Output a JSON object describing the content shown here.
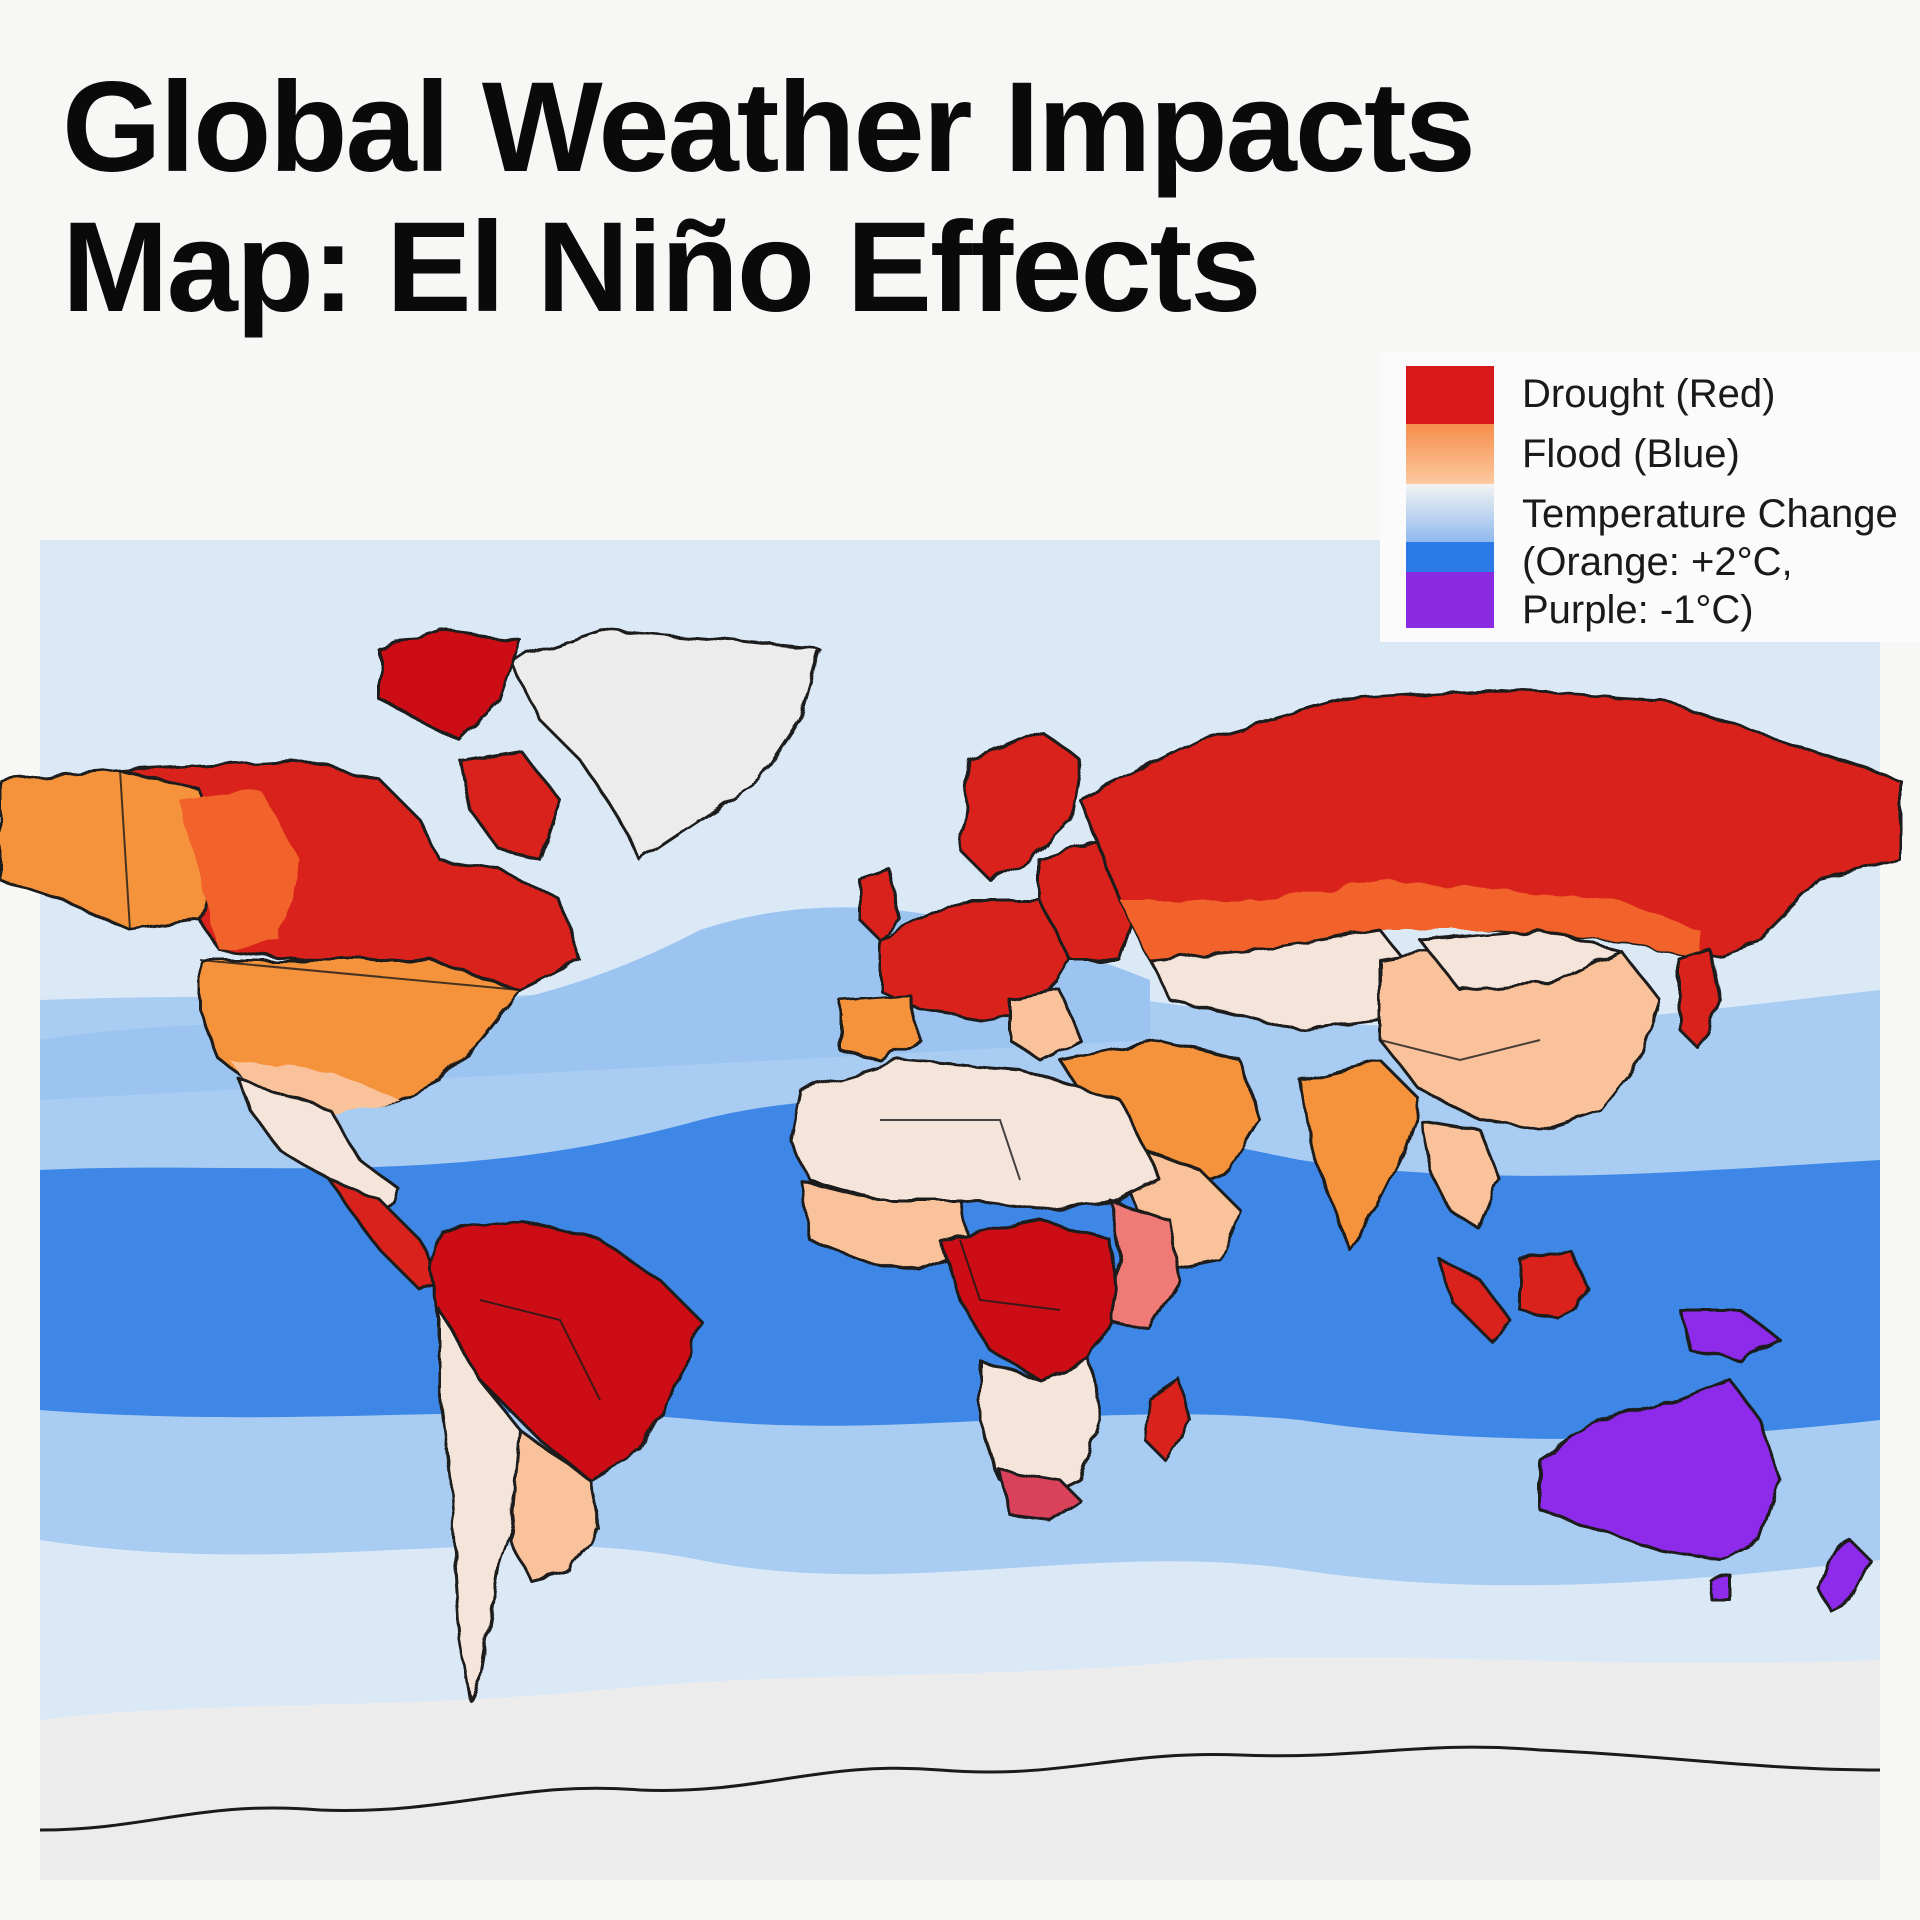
{
  "title": {
    "line1": "Global Weather Impacts",
    "line2": "Map: El Niño Effects"
  },
  "legend": {
    "drought": "Drought (Red)",
    "flood": "Flood (Blue)",
    "temp_line1": "Temperature Change",
    "temp_line2": "(Orange: +2°C,",
    "temp_line3": "Purple:   -1°C)",
    "colors": {
      "drought": "#d7191c",
      "warm": "#fdae61",
      "neutral": "#f7f7f7",
      "flood": "#3a86e8",
      "cool": "#8a2be2"
    }
  },
  "map": {
    "colors": {
      "ocean_light": "#dbe9f7",
      "ocean_mid": "#9cc4f0",
      "ocean_deep": "#3f87e6",
      "ice": "#ececec",
      "drought": "#d9211b",
      "drought_dark": "#cc0f12",
      "warm": "#f4933b",
      "warm_light": "#f9c29a",
      "neutral": "#f4e4da",
      "cool": "#8e2bea",
      "cool_pink": "#d9425a",
      "border": "#1a1a1a"
    }
  }
}
